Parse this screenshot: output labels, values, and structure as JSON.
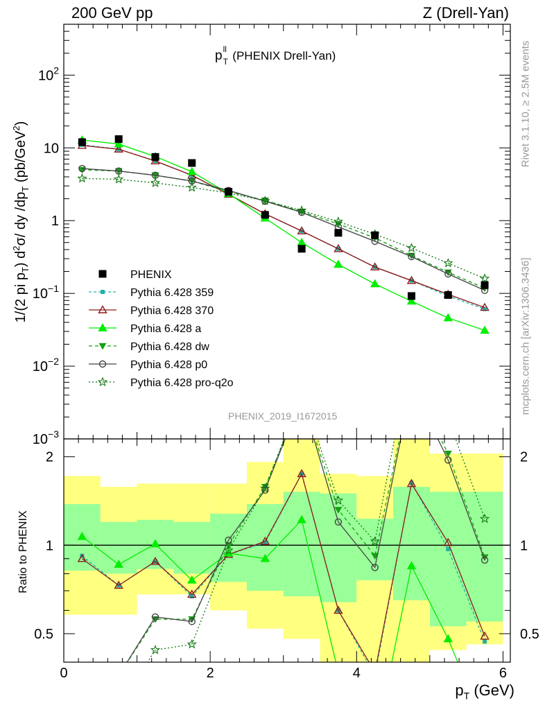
{
  "header": {
    "left": "200 GeV pp",
    "right": "Z (Drell-Yan)"
  },
  "side_labels": {
    "rivet": "Rivet 3.1.10, ≥ 2.5M events",
    "source": "mcplots.cern.ch [arXiv:1306.3436]"
  },
  "chart_data": {
    "type": "scatter",
    "title": {
      "main": "p",
      "sup": "ll",
      "sub": "T",
      "rest": " (PHENIX Drell-Yan)"
    },
    "watermark": "PHENIX_2019_I1672015",
    "xlabel": {
      "main": "p",
      "sub": "T",
      "rest": " (GeV)"
    },
    "ylabel": {
      "parts": [
        "1/(2 pi p",
        "T",
        ") d",
        "2",
        "σ/ dy /dp",
        "T",
        " (pb/GeV",
        "2",
        ")"
      ]
    },
    "ratio_ylabel": "Ratio to PHENIX",
    "xlim": [
      0,
      6.1
    ],
    "ylim": [
      0.001,
      500
    ],
    "ylog": true,
    "ratio_ylim": [
      0.4,
      2.3
    ],
    "x_ticks": [
      "0",
      "2",
      "4",
      "6"
    ],
    "y_ticks": [
      {
        "v": 0.001,
        "m": "10",
        "e": "−3"
      },
      {
        "v": 0.01,
        "m": "10",
        "e": "−2"
      },
      {
        "v": 0.1,
        "m": "10",
        "e": "−1"
      },
      {
        "v": 1,
        "m": "1",
        "e": ""
      },
      {
        "v": 10,
        "m": "10",
        "e": ""
      },
      {
        "v": 100,
        "m": "10",
        "e": "2"
      }
    ],
    "ratio_ticks": [
      "0.5",
      "1",
      "2"
    ],
    "x": [
      0.25,
      0.75,
      1.25,
      1.75,
      2.25,
      2.75,
      3.25,
      3.75,
      4.25,
      4.75,
      5.25,
      5.75
    ],
    "data": {
      "name": "PHENIX",
      "values": [
        12,
        13.2,
        7.5,
        6.2,
        2.5,
        1.2,
        0.41,
        0.68,
        0.63,
        0.092,
        0.095,
        0.13
      ]
    },
    "series": [
      {
        "name": "Pythia 6.428 359",
        "color": "#20b2aa",
        "dash": "4,3",
        "marker": "square",
        "values": [
          11,
          9.6,
          6.6,
          4.2,
          2.3,
          1.24,
          0.72,
          0.41,
          0.23,
          0.15,
          0.092,
          0.061
        ]
      },
      {
        "name": "Pythia 6.428 370",
        "color": "#8b1a1a",
        "dash": "",
        "marker": "triangle-open",
        "values": [
          10.8,
          9.6,
          6.6,
          4.2,
          2.3,
          1.24,
          0.72,
          0.41,
          0.23,
          0.15,
          0.097,
          0.064
        ]
      },
      {
        "name": "Pythia 6.428 a",
        "color": "#00ee00",
        "dash": "",
        "marker": "triangle",
        "values": [
          12.8,
          11.3,
          7.6,
          4.7,
          2.35,
          1.08,
          0.5,
          0.25,
          0.135,
          0.078,
          0.046,
          0.031
        ]
      },
      {
        "name": "Pythia 6.428 dw",
        "color": "#16a016",
        "dash": "5,4",
        "marker": "triangle-down",
        "values": [
          5.0,
          4.8,
          4.2,
          3.5,
          2.5,
          1.9,
          1.33,
          0.9,
          0.58,
          0.33,
          0.195,
          0.118
        ]
      },
      {
        "name": "Pythia 6.428 p0",
        "color": "#444444",
        "dash": "",
        "marker": "circle-open",
        "values": [
          5.2,
          4.8,
          4.2,
          3.5,
          2.6,
          1.85,
          1.3,
          0.82,
          0.52,
          0.32,
          0.185,
          0.11
        ]
      },
      {
        "name": "Pythia 6.428 pro-q2o",
        "color": "#117711",
        "dash": "2,3",
        "marker": "star",
        "values": [
          3.8,
          3.7,
          3.3,
          2.85,
          2.4,
          1.87,
          1.38,
          0.97,
          0.65,
          0.42,
          0.26,
          0.16
        ]
      }
    ],
    "ratio_series": [
      [
        0.92,
        0.73,
        0.88,
        0.67,
        0.93,
        1.02,
        1.75,
        0.6,
        0.36,
        1.63,
        0.97,
        0.47
      ],
      [
        0.9,
        0.73,
        0.88,
        0.68,
        0.93,
        1.03,
        1.75,
        0.6,
        0.37,
        1.62,
        1.02,
        0.49
      ],
      [
        1.07,
        0.86,
        1.01,
        0.76,
        0.94,
        0.9,
        1.22,
        0.37,
        0.21,
        0.85,
        0.48,
        0.24
      ],
      [
        0.36,
        0.36,
        0.56,
        0.56,
        1.0,
        1.58,
        3.2,
        1.32,
        0.92,
        3.6,
        2.05,
        0.91
      ],
      [
        0.38,
        0.36,
        0.57,
        0.55,
        1.04,
        1.54,
        3.2,
        1.2,
        0.84,
        3.5,
        1.95,
        0.89
      ],
      [
        0.32,
        0.28,
        0.44,
        0.46,
        0.96,
        1.56,
        3.3,
        1.42,
        1.03,
        4.6,
        2.7,
        1.23
      ]
    ],
    "bands": {
      "green_lo": [
        0.82,
        0.8,
        0.83,
        0.8,
        0.75,
        0.7,
        0.67,
        0.64,
        0.76,
        0.65,
        0.53,
        0.55
      ],
      "green_hi": [
        1.38,
        1.2,
        1.22,
        1.2,
        1.28,
        1.38,
        1.52,
        1.5,
        1.23,
        1.58,
        1.52,
        1.52
      ],
      "yellow_lo": [
        0.58,
        0.58,
        0.68,
        0.68,
        0.6,
        0.52,
        0.48,
        0.34,
        0.26,
        0.33,
        0.44,
        0.46
      ],
      "yellow_hi": [
        1.72,
        1.58,
        1.62,
        1.62,
        1.62,
        1.92,
        2.3,
        1.75,
        1.72,
        2.3,
        2.05,
        2.05
      ]
    },
    "legend_position": "bottom-left"
  }
}
